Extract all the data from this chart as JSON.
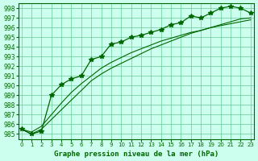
{
  "title": "Graphe pression niveau de la mer (hPa)",
  "x_labels": [
    "0",
    "1",
    "2",
    "3",
    "4",
    "5",
    "6",
    "7",
    "8",
    "9",
    "10",
    "11",
    "12",
    "13",
    "14",
    "15",
    "16",
    "17",
    "18",
    "19",
    "20",
    "21",
    "22",
    "23"
  ],
  "ylim": [
    984.5,
    998.5
  ],
  "xlim": [
    -0.3,
    23.3
  ],
  "yticks": [
    985,
    986,
    987,
    988,
    989,
    990,
    991,
    992,
    993,
    994,
    995,
    996,
    997,
    998
  ],
  "main_series": [
    985.5,
    985.0,
    985.3,
    989.0,
    990.1,
    990.7,
    991.0,
    992.7,
    993.0,
    994.3,
    994.5,
    995.0,
    995.2,
    995.5,
    995.8,
    996.3,
    996.5,
    997.2,
    997.0,
    997.5,
    998.0,
    998.2,
    998.0,
    997.5
  ],
  "smooth_line1": [
    985.5,
    985.0,
    985.5,
    986.5,
    987.5,
    988.5,
    989.5,
    990.5,
    991.2,
    991.8,
    992.3,
    992.8,
    993.3,
    993.8,
    994.2,
    994.6,
    995.0,
    995.4,
    995.7,
    996.0,
    996.3,
    996.6,
    996.9,
    997.0
  ],
  "smooth_line2": [
    985.5,
    985.2,
    985.8,
    987.0,
    988.2,
    989.3,
    990.2,
    991.0,
    991.8,
    992.4,
    992.9,
    993.4,
    993.8,
    994.2,
    994.6,
    994.9,
    995.2,
    995.5,
    995.7,
    996.0,
    996.2,
    996.4,
    996.6,
    996.8
  ],
  "line_color": "#006600",
  "marker_color": "#006600",
  "bg_color": "#ccffee",
  "grid_color": "#66cc99",
  "tick_color": "#006600",
  "label_color": "#006600",
  "title_color": "#006600"
}
